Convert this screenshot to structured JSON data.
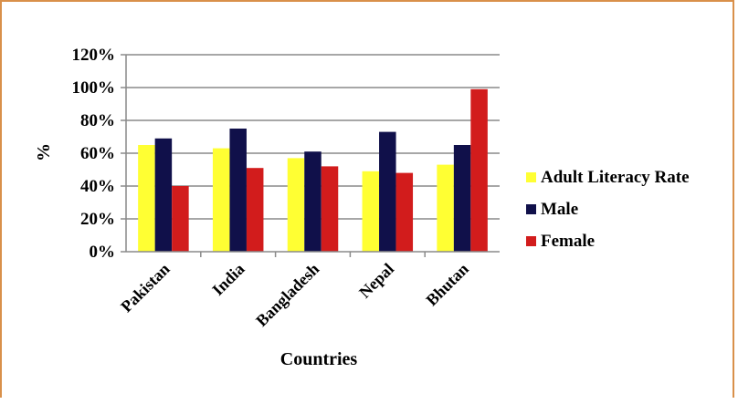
{
  "chart_data": {
    "type": "bar",
    "title": "",
    "xlabel": "Countries",
    "ylabel": "%",
    "ylim": [
      0,
      120
    ],
    "y_tick_format": "percent",
    "yticks": [
      0,
      20,
      40,
      60,
      80,
      100,
      120
    ],
    "grid": true,
    "legend_position": "right",
    "categories": [
      "Pakistan",
      "India",
      "Bangladesh",
      "Nepal",
      "Bhutan"
    ],
    "series": [
      {
        "name": "Adult Literacy Rate",
        "color": "#ffff33",
        "values": [
          65,
          63,
          57,
          49,
          53
        ]
      },
      {
        "name": "Male",
        "color": "#10104a",
        "values": [
          69,
          75,
          61,
          73,
          65
        ]
      },
      {
        "name": "Female",
        "color": "#d21c1c",
        "values": [
          40,
          51,
          52,
          48,
          99
        ]
      }
    ]
  }
}
